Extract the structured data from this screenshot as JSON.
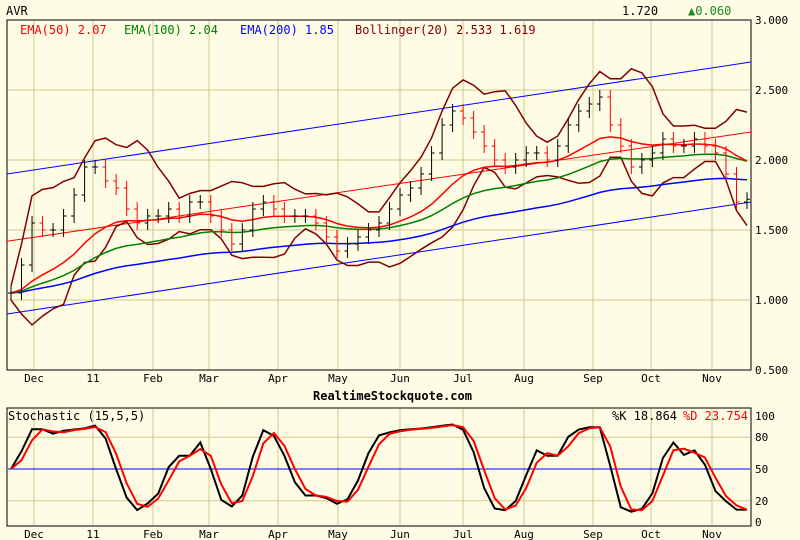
{
  "header": {
    "symbol": "AVR",
    "last": "1.720",
    "change": "▲0.060",
    "change_color": "#1a8a1a"
  },
  "legend": {
    "ema50": "EMA(50) 2.07",
    "ema100": "EMA(100) 2.04",
    "ema200": "EMA(200) 1.85",
    "bollinger": "Bollinger(20) 2.533 1.619"
  },
  "watermark": "RealtimeStockquote.com",
  "stoch_legend": {
    "title": "Stochastic (15,5,5)",
    "k": "%K 18.864",
    "d": "%D 23.754"
  },
  "colors": {
    "ema50": "#ff0000",
    "ema100": "#008000",
    "ema200": "#0000ff",
    "bollinger": "#800000",
    "k": "#000000",
    "d": "#ff0000",
    "grid": "#d2c98e"
  },
  "chart_data": [
    {
      "type": "ohlc",
      "title": "AVR",
      "ylim": [
        0.5,
        3.0
      ],
      "yticks": [
        "3.000",
        "2.500",
        "2.000",
        "1.500",
        "1.000",
        "0.500"
      ],
      "xticks": [
        "Dec",
        "11",
        "Feb",
        "Mar",
        "Apr",
        "May",
        "Jun",
        "Jul",
        "Aug",
        "Sep",
        "Oct",
        "Nov"
      ],
      "grid": true,
      "closes": [
        1.05,
        1.25,
        1.55,
        1.5,
        1.5,
        1.6,
        1.75,
        1.95,
        1.95,
        1.85,
        1.8,
        1.65,
        1.55,
        1.6,
        1.6,
        1.65,
        1.6,
        1.7,
        1.7,
        1.6,
        1.5,
        1.4,
        1.5,
        1.65,
        1.7,
        1.65,
        1.6,
        1.6,
        1.6,
        1.55,
        1.45,
        1.35,
        1.4,
        1.45,
        1.5,
        1.55,
        1.65,
        1.75,
        1.8,
        1.9,
        2.05,
        2.25,
        2.35,
        2.3,
        2.2,
        2.1,
        2.0,
        1.95,
        2.0,
        2.05,
        2.05,
        2.0,
        2.1,
        2.25,
        2.35,
        2.4,
        2.45,
        2.25,
        2.1,
        1.95,
        2.0,
        2.05,
        2.15,
        2.1,
        2.1,
        2.15,
        2.1,
        2.05,
        1.9,
        1.7,
        1.72
      ],
      "trendlines": [
        {
          "color": "#0000ff",
          "from": 1.9,
          "to": 2.7
        },
        {
          "color": "#0000ff",
          "from": 0.9,
          "to": 1.7
        },
        {
          "color": "#ff0000",
          "from": 1.42,
          "to": 2.2
        }
      ]
    },
    {
      "type": "line",
      "title": "Stochastic (15,5,5)",
      "ylim": [
        0,
        100
      ],
      "yticks": [
        "100",
        "80",
        "50",
        "20",
        "0"
      ],
      "xticks": [
        "Dec",
        "11",
        "Feb",
        "Mar",
        "Apr",
        "May",
        "Jun",
        "Jul",
        "Aug",
        "Sep",
        "Oct",
        "Nov"
      ],
      "reference_line": 50
    }
  ]
}
